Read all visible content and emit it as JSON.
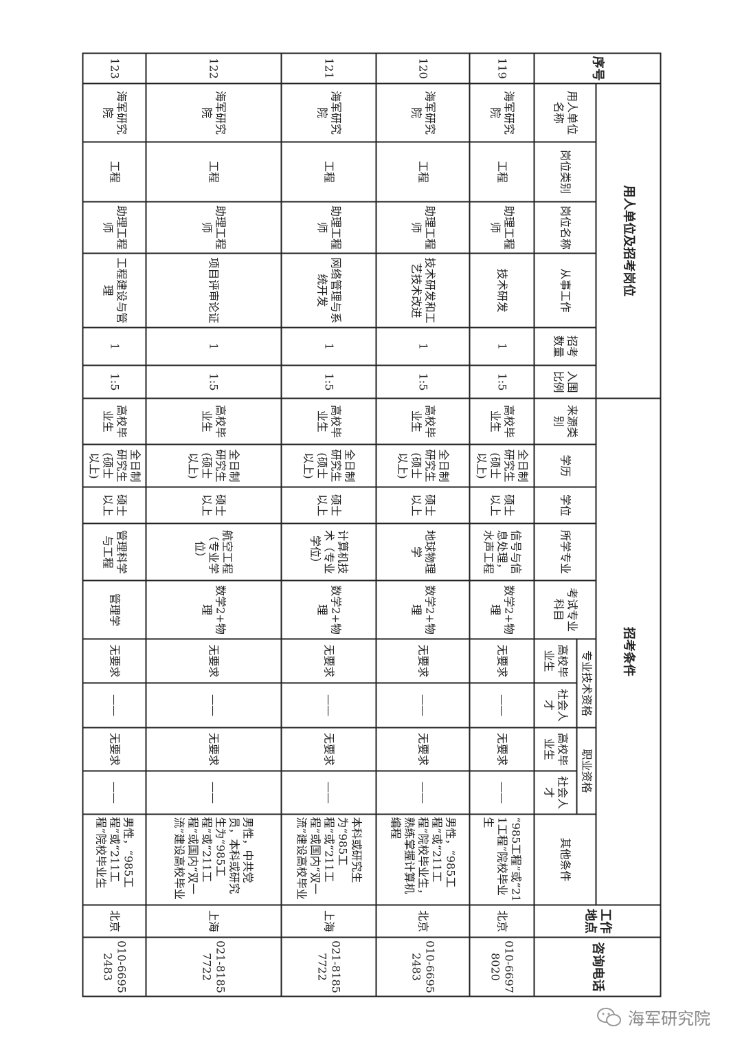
{
  "header": {
    "seq": "序号",
    "group1": "用人单位及招考岗位",
    "group2": "招考条件",
    "unit": "用人单位名称",
    "post_type": "岗位类别",
    "post_name": "岗位名称",
    "work": "从事工作",
    "count": "招考数量",
    "ratio": "入围比例",
    "source": "来源类别",
    "education": "学历",
    "degree": "学位",
    "major": "所学专业",
    "exam": "考试专业科目",
    "tech_qual": "专业技术资格",
    "voc_qual": "职业资格",
    "grad": "高校毕业生",
    "social": "社会人才",
    "other": "其他条件",
    "location": "工作地点",
    "phone": "咨询电话"
  },
  "rows": [
    {
      "seq": "119",
      "unit": "海军研究院",
      "post_type": "工程",
      "post_name": "助理工程师",
      "work": "技术研发",
      "count": "1",
      "ratio": "1:5",
      "source": "高校毕业生",
      "education": "全日制研究生(硕士以上)",
      "degree": "硕士以上",
      "major": "信号与信息处理，水声工程",
      "exam": "数学2+物理",
      "tech_grad": "无要求",
      "tech_social": "——",
      "voc_grad": "无要求",
      "voc_social": "——",
      "other": "“985工程”或“211工程”院校毕业生",
      "location": "北京",
      "phone": "010-66978020"
    },
    {
      "seq": "120",
      "unit": "海军研究院",
      "post_type": "工程",
      "post_name": "助理工程师",
      "work": "技术研发和工艺技术改进",
      "count": "1",
      "ratio": "1:5",
      "source": "高校毕业生",
      "education": "全日制研究生(硕士以上)",
      "degree": "硕士以上",
      "major": "地球物理学",
      "exam": "数学2+物理",
      "tech_grad": "无要求",
      "tech_social": "——",
      "voc_grad": "无要求",
      "voc_social": "——",
      "other": "男性，“985工程”或“211工程”院校毕业生，熟练掌握计算机编程",
      "location": "北京",
      "phone": "010-66952483"
    },
    {
      "seq": "121",
      "unit": "海军研究院",
      "post_type": "工程",
      "post_name": "助理工程师",
      "work": "网络管理与系统开发",
      "count": "1",
      "ratio": "1:5",
      "source": "高校毕业生",
      "education": "全日制研究生(硕士以上)",
      "degree": "硕士以上",
      "major": "计算机技术（专业学位）",
      "exam": "数学2+物理",
      "tech_grad": "无要求",
      "tech_social": "——",
      "voc_grad": "无要求",
      "voc_social": "——",
      "other": "本科或研究生为“985工程”或“211工程”或国内“双一流”建设高校毕业",
      "location": "上海",
      "phone": "021-81857722"
    },
    {
      "seq": "122",
      "unit": "海军研究院",
      "post_type": "工程",
      "post_name": "助理工程师",
      "work": "项目评审论证",
      "count": "1",
      "ratio": "1:5",
      "source": "高校毕业生",
      "education": "全日制研究生(硕士以上)",
      "degree": "硕士以上",
      "major": "航空工程（专业学位）",
      "exam": "数学2+物理",
      "tech_grad": "无要求",
      "tech_social": "——",
      "voc_grad": "无要求",
      "voc_social": "——",
      "other": "男性，中共党员，本科或研究生为“985工程”或“211工程”或国内“双一流”建设高校毕业",
      "location": "上海",
      "phone": "021-81857722"
    },
    {
      "seq": "123",
      "unit": "海军研究院",
      "post_type": "工程",
      "post_name": "助理工程师",
      "work": "工程建设与管理",
      "count": "1",
      "ratio": "1:5",
      "source": "高校毕业生",
      "education": "全日制研究生(硕士以上)",
      "degree": "硕士以上",
      "major": "管理科学与工程",
      "exam": "管理学",
      "tech_grad": "无要求",
      "tech_social": "——",
      "voc_grad": "无要求",
      "voc_social": "——",
      "other": "男性，“985工程”或“211工程”院校毕业生",
      "location": "北京",
      "phone": "010-66952483"
    }
  ],
  "watermark": {
    "text": "海军研究院",
    "icon": "wechat-icon"
  }
}
